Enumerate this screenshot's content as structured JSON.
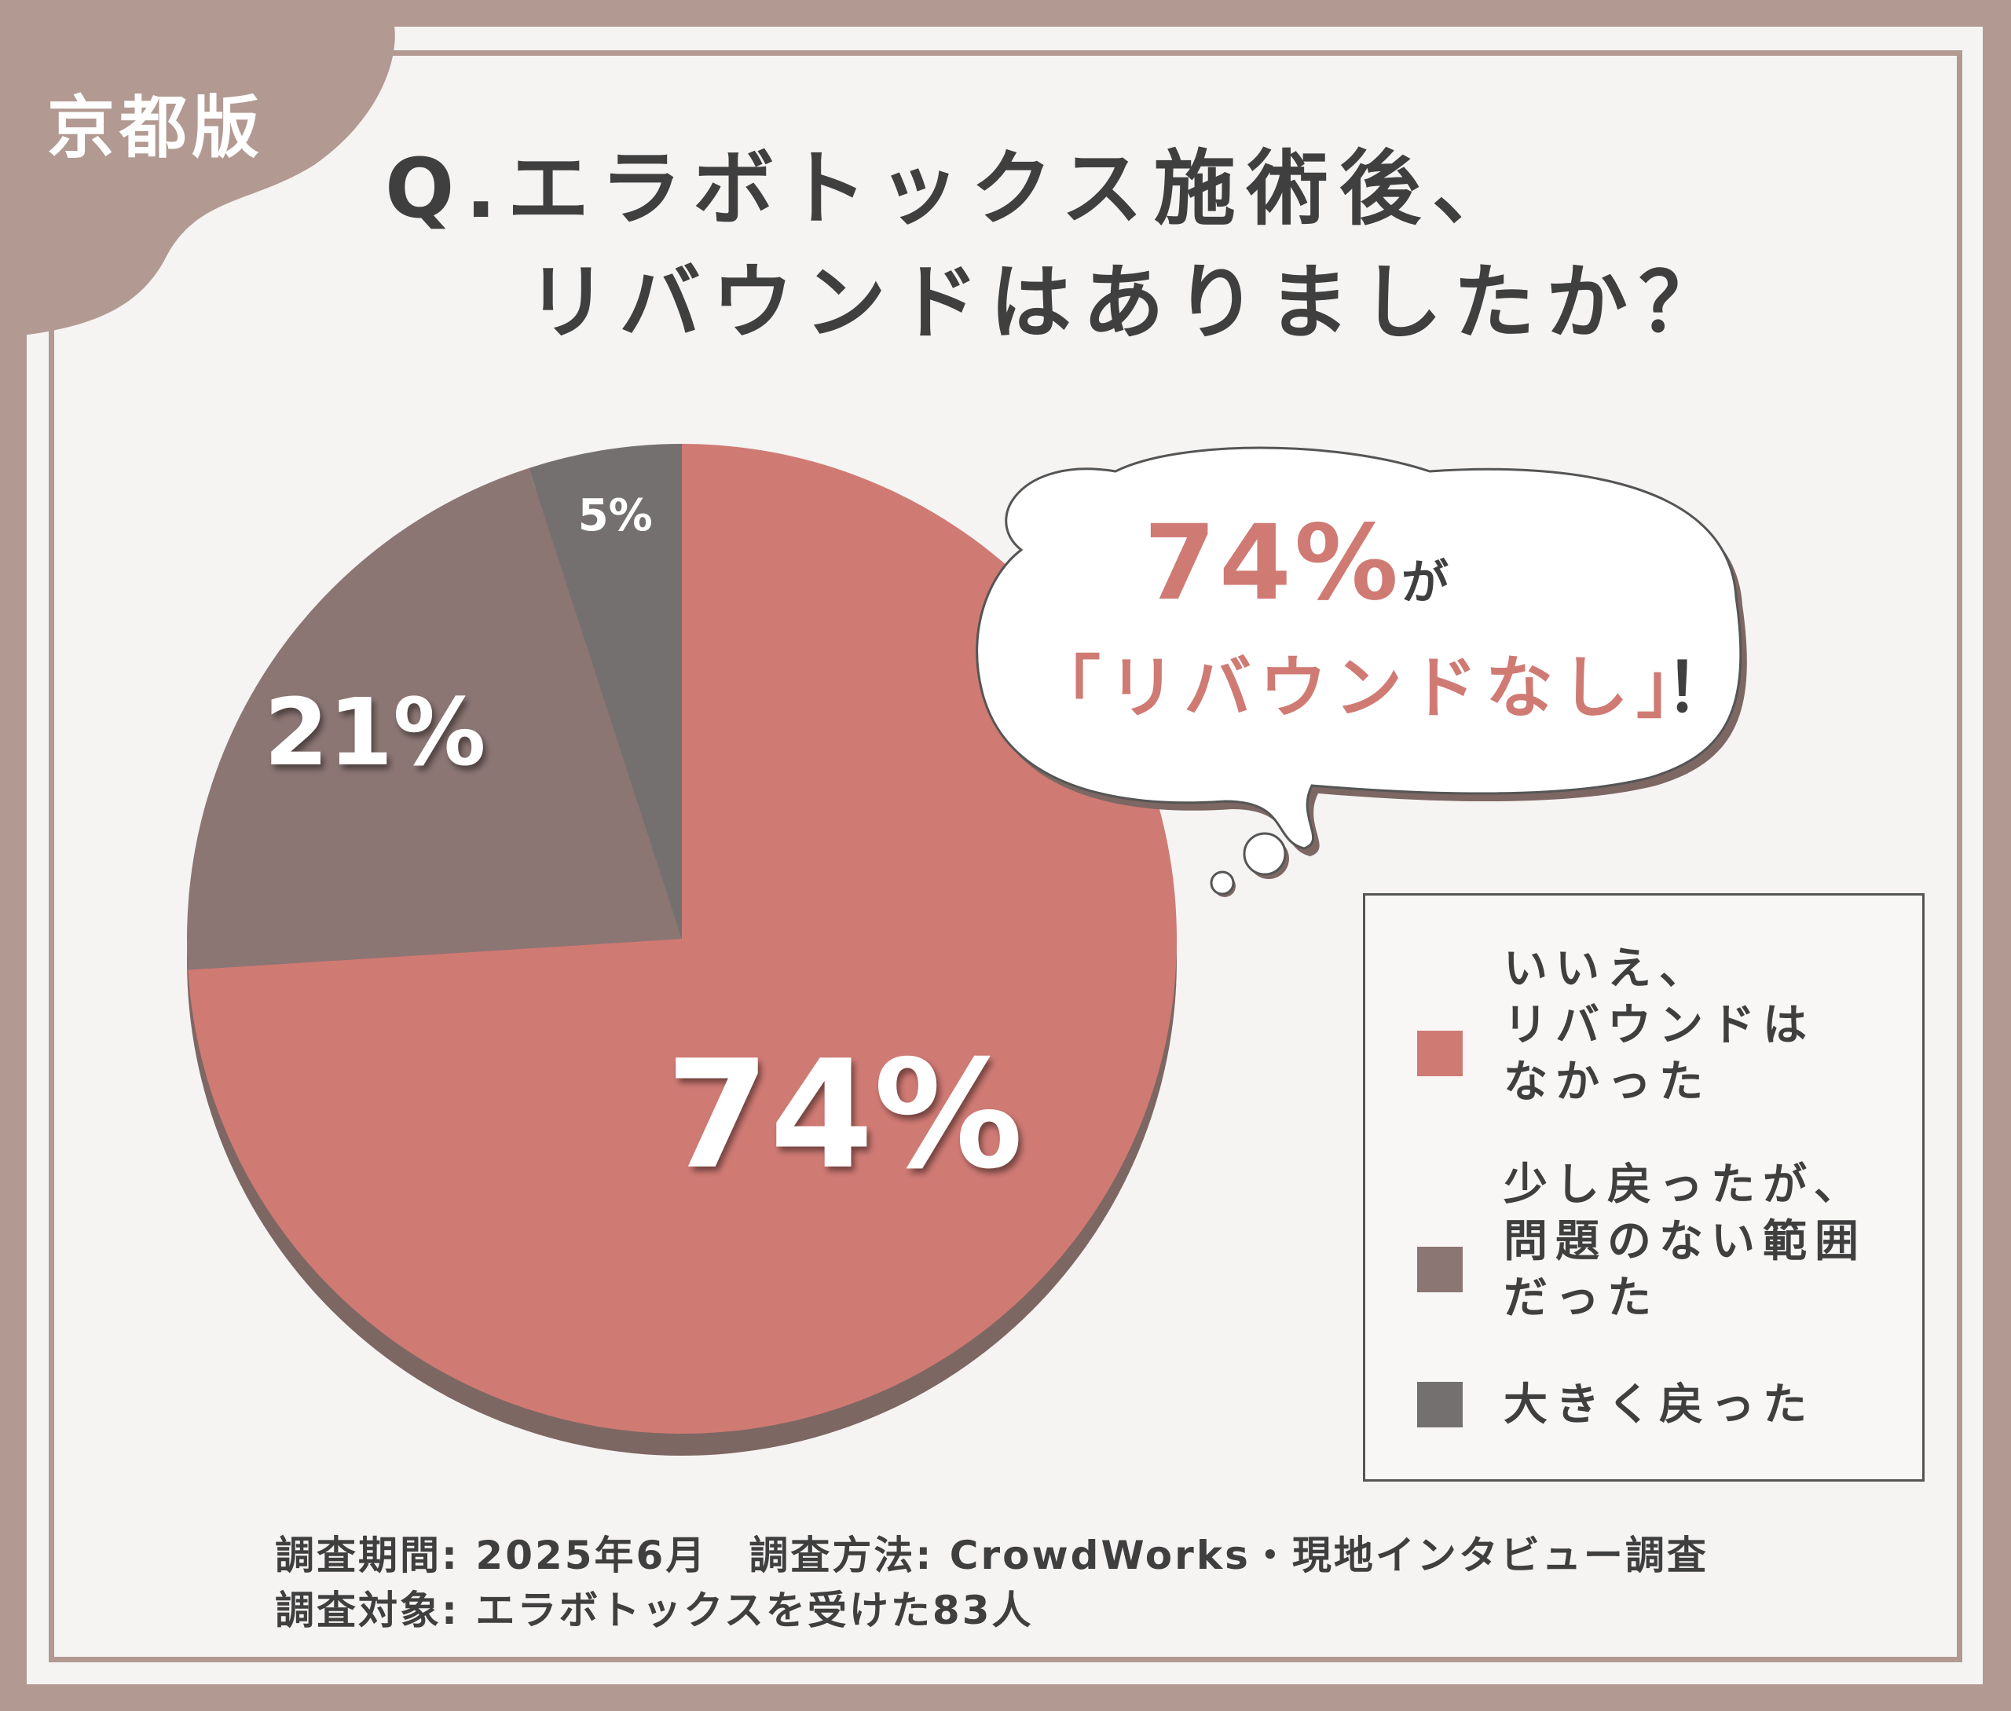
{
  "badge": "京都版",
  "question": {
    "line1": "Q.エラボトックス施術後、",
    "line2": "リバウンドはありましたか？"
  },
  "bubble": {
    "value": "74%",
    "particle": "が",
    "text": "「リバウンドなし」",
    "exclaim": "！"
  },
  "colors": {
    "no_rebound": "#d07a74",
    "small_rebound": "#8b7674",
    "large_rebound": "#747070",
    "shadow": "#7d6763",
    "frame": "#b29a92"
  },
  "chart_data": {
    "type": "pie",
    "title": "",
    "series": [
      {
        "name": "いいえ、リバウンドはなかった",
        "label": "74%",
        "value": 74,
        "color": "#d07a74"
      },
      {
        "name": "少し戻ったが、問題のない範囲だった",
        "label": "21%",
        "value": 21,
        "color": "#8b7674"
      },
      {
        "name": "大きく戻った",
        "label": "5%",
        "value": 5,
        "color": "#747070"
      }
    ],
    "legend_position": "right"
  },
  "legend": [
    {
      "label": "いいえ、\nリバウンドは\nなかった"
    },
    {
      "label": "少し戻ったが、\n問題のない範囲\nだった"
    },
    {
      "label": "大きく戻った"
    }
  ],
  "footer": {
    "line1": "調査期間: 2025年6月　調査方法: CrowdWorks・現地インタビュー調査",
    "line2": "調査対象: エラボトックスを受けた83人"
  }
}
